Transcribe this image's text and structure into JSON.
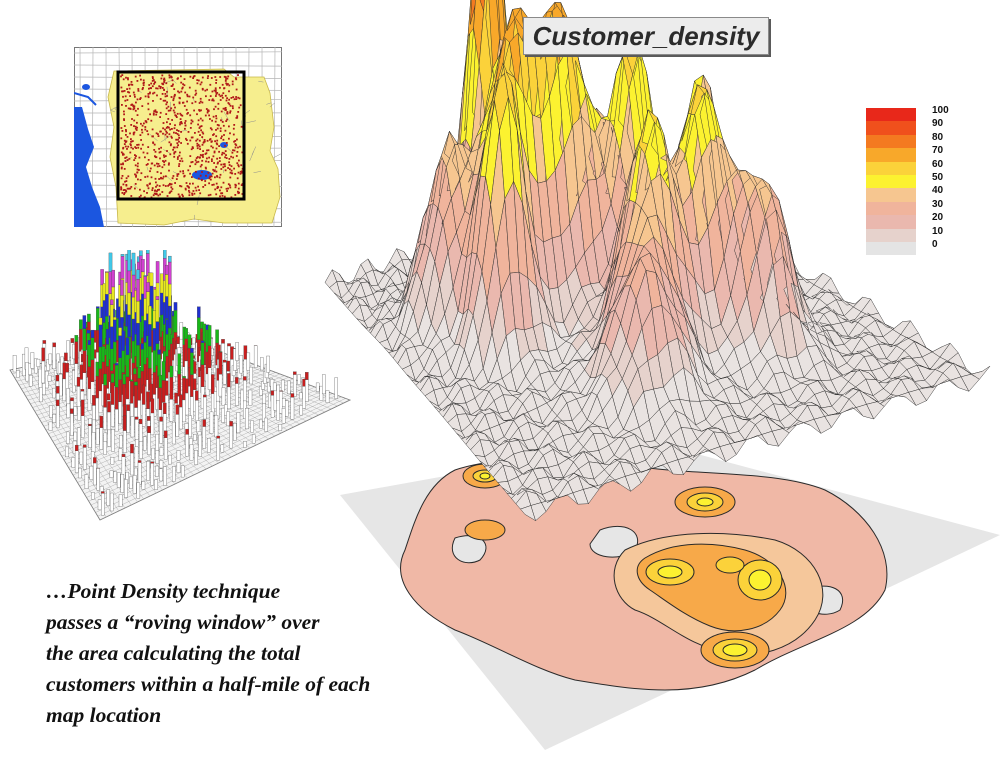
{
  "title": "Customer_density",
  "caption_lines": [
    "…Point Density technique",
    "passes a “roving window” over",
    "the area calculating the total",
    "customers within a half-mile of each",
    "map location"
  ],
  "legend": {
    "labels": [
      "100",
      "90",
      "80",
      "70",
      "60",
      "50",
      "40",
      "30",
      "20",
      "10",
      "0"
    ],
    "colors": [
      "#e8281a",
      "#f0501c",
      "#f47a20",
      "#f8a82a",
      "#fbd23a",
      "#fcf230",
      "#f6c690",
      "#f0b49c",
      "#eab8ae",
      "#e6d2cc",
      "#e4e4e4"
    ]
  },
  "icons": {
    "inset_map": "street-map-thumbnail-icon",
    "bar_plot": "3d-bar-histogram-icon",
    "surface": "3d-density-surface-icon",
    "contour": "contour-map-icon"
  },
  "colors": {
    "map_yellow": "#f6ee8e",
    "water_blue": "#1b56e0",
    "point_red": "#b01818",
    "surface_line": "#2a2a2a",
    "contour_base": "#f0b8a6"
  }
}
